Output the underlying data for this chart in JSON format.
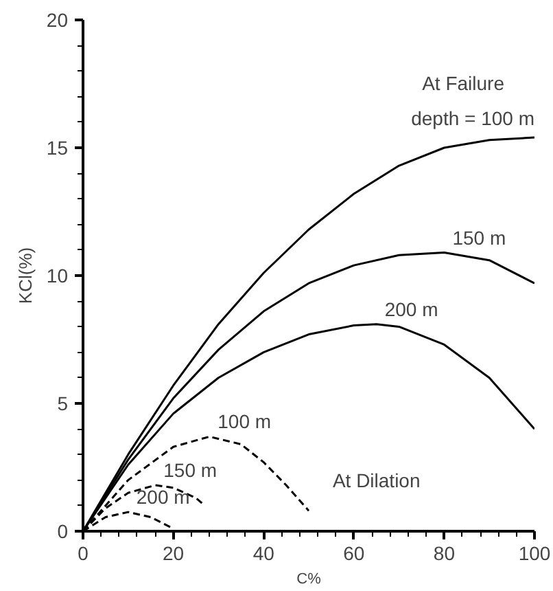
{
  "chart_data": {
    "type": "line",
    "xlabel": "C%",
    "ylabel": "KCl(%)",
    "xlim": [
      0,
      100
    ],
    "ylim": [
      0,
      20
    ],
    "xticks": [
      0,
      {
        "value": 4,
        "label": null
      },
      {
        "value": 8,
        "label": null
      },
      {
        "value": 12,
        "label": null
      },
      {
        "value": 16,
        "label": null
      },
      20,
      {
        "value": 24,
        "label": null
      },
      {
        "value": 28,
        "label": null
      },
      {
        "value": 32,
        "label": null
      },
      {
        "value": 36,
        "label": null
      },
      40,
      {
        "value": 44,
        "label": null
      },
      {
        "value": 48,
        "label": null
      },
      {
        "value": 52,
        "label": null
      },
      {
        "value": 56,
        "label": null
      },
      60,
      {
        "value": 64,
        "label": null
      },
      {
        "value": 68,
        "label": null
      },
      {
        "value": 72,
        "label": null
      },
      {
        "value": 76,
        "label": null
      },
      80,
      {
        "value": 84,
        "label": null
      },
      {
        "value": 88,
        "label": null
      },
      {
        "value": 92,
        "label": null
      },
      {
        "value": 96,
        "label": null
      },
      100
    ],
    "yticks": [
      0,
      {
        "value": 1,
        "label": null
      },
      {
        "value": 2,
        "label": null
      },
      {
        "value": 3,
        "label": null
      },
      {
        "value": 4,
        "label": null
      },
      5,
      {
        "value": 6,
        "label": null
      },
      {
        "value": 7,
        "label": null
      },
      {
        "value": 8,
        "label": null
      },
      {
        "value": 9,
        "label": null
      },
      10,
      {
        "value": 11,
        "label": null
      },
      {
        "value": 12,
        "label": null
      },
      {
        "value": 13,
        "label": null
      },
      {
        "value": 14,
        "label": null
      },
      15,
      {
        "value": 16,
        "label": null
      },
      {
        "value": 17,
        "label": null
      },
      {
        "value": 18,
        "label": null
      },
      {
        "value": 19,
        "label": null
      },
      20
    ],
    "grid": false,
    "marker": "none",
    "series": [
      {
        "name": "depth = 100 m",
        "color": "#000000",
        "line_style": "solid",
        "x": [
          0,
          10,
          20,
          30,
          40,
          50,
          60,
          70,
          80,
          90,
          100
        ],
        "values": [
          0,
          3.0,
          5.7,
          8.1,
          10.1,
          11.8,
          13.2,
          14.3,
          15.0,
          15.3,
          15.4
        ]
      },
      {
        "name": "150 m",
        "color": "#000000",
        "line_style": "solid",
        "x": [
          0,
          10,
          20,
          30,
          40,
          50,
          60,
          70,
          80,
          90,
          100
        ],
        "values": [
          0,
          2.8,
          5.2,
          7.1,
          8.6,
          9.7,
          10.4,
          10.8,
          10.9,
          10.6,
          9.7
        ]
      },
      {
        "name": "200 m",
        "color": "#000000",
        "line_style": "solid",
        "x": [
          0,
          10,
          20,
          30,
          40,
          50,
          60,
          65,
          70,
          80,
          90,
          100
        ],
        "values": [
          0,
          2.6,
          4.6,
          6.0,
          7.0,
          7.7,
          8.05,
          8.1,
          8.0,
          7.3,
          6.0,
          4.0
        ]
      },
      {
        "name": "100 m",
        "color": "#000000",
        "line_style": "dashed",
        "x": [
          0,
          10,
          20,
          28,
          35,
          40,
          45,
          50
        ],
        "values": [
          0,
          2.0,
          3.3,
          3.7,
          3.4,
          2.7,
          1.8,
          0.8
        ]
      },
      {
        "name": "150 m",
        "color": "#000000",
        "line_style": "dashed",
        "x": [
          0,
          5,
          10,
          16,
          20,
          25,
          27
        ],
        "values": [
          0,
          0.9,
          1.5,
          1.8,
          1.7,
          1.3,
          1.0
        ]
      },
      {
        "name": "200 m",
        "color": "#000000",
        "line_style": "dashed",
        "x": [
          0,
          5,
          10,
          15,
          20
        ],
        "values": [
          0,
          0.55,
          0.75,
          0.55,
          0.1
        ]
      }
    ],
    "annotations": [
      "At Failure",
      "At Dilation"
    ]
  }
}
